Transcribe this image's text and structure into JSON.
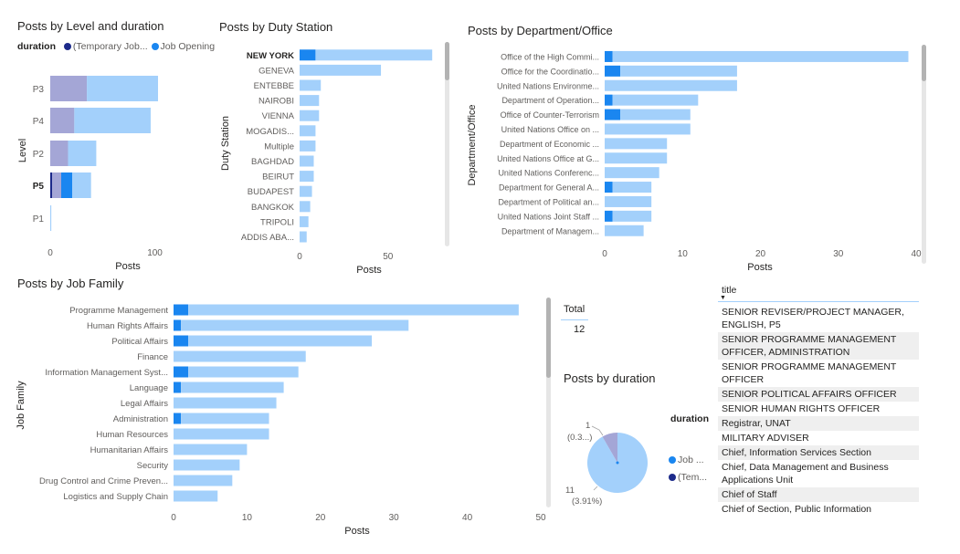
{
  "colors": {
    "light": "#a3d0fb",
    "dark": "#1a86f0",
    "purple": "#a4a6d6",
    "navy": "#1c2a8a",
    "axis": "#605e5c"
  },
  "level_chart": {
    "title": "Posts by Level and duration",
    "legend_title": "duration",
    "legend_items": [
      "(Temporary Job...",
      "Job Opening"
    ],
    "ylabel": "Level",
    "xlabel": "Posts",
    "chart_data": {
      "type": "bar",
      "orientation": "horizontal",
      "stacked": true,
      "categories": [
        "P3",
        "P4",
        "P2",
        "P5",
        "P1"
      ],
      "series": [
        {
          "name": "(Temporary Job...",
          "values": [
            35,
            23,
            17,
            11,
            0
          ]
        },
        {
          "name": "Job Opening",
          "values": [
            68,
            73,
            27,
            28,
            1
          ]
        }
      ],
      "xticks": [
        "0",
        "100"
      ],
      "xlim": [
        0,
        110
      ]
    }
  },
  "duty_chart": {
    "title": "Posts by Duty Station",
    "ylabel": "Duty Station",
    "xlabel": "Posts",
    "chart_data": {
      "type": "bar",
      "orientation": "horizontal",
      "stacked": true,
      "categories": [
        "NEW YORK",
        "GENEVA",
        "ENTEBBE",
        "NAIROBI",
        "VIENNA",
        "MOGADIS...",
        "Multiple",
        "BAGHDAD",
        "BEIRUT",
        "BUDAPEST",
        "BANGKOK",
        "TRIPOLI",
        "ADDIS ABA..."
      ],
      "series": [
        {
          "name": "dark",
          "values": [
            9,
            0,
            0,
            0,
            0,
            0,
            0,
            0,
            0,
            0,
            0,
            0,
            0
          ]
        },
        {
          "name": "light",
          "values": [
            66,
            46,
            12,
            11,
            11,
            9,
            9,
            8,
            8,
            7,
            6,
            5,
            4
          ]
        }
      ],
      "xticks": [
        "0",
        "50"
      ],
      "xlim": [
        0,
        78
      ]
    }
  },
  "dept_chart": {
    "title": "Posts by Department/Office",
    "ylabel": "Department/Office",
    "xlabel": "Posts",
    "chart_data": {
      "type": "bar",
      "orientation": "horizontal",
      "stacked": true,
      "categories": [
        "Office of the High Commi...",
        "Office for the Coordinatio...",
        "United Nations Environme...",
        "Department of Operation...",
        "Office of Counter-Terrorism",
        "United Nations Office on ...",
        "Department of Economic ...",
        "United Nations Office at G...",
        "United Nations Conferenc...",
        "Department for General A...",
        "Department of Political an...",
        "United Nations Joint Staff ...",
        "Department of Managem..."
      ],
      "series": [
        {
          "name": "dark",
          "values": [
            1,
            2,
            0,
            1,
            2,
            0,
            0,
            0,
            0,
            1,
            0,
            1,
            0
          ]
        },
        {
          "name": "light",
          "values": [
            38,
            15,
            17,
            11,
            9,
            11,
            8,
            8,
            7,
            5,
            6,
            5,
            5
          ]
        }
      ],
      "xticks": [
        "0",
        "10",
        "20",
        "30",
        "40"
      ],
      "xlim": [
        0,
        40
      ]
    }
  },
  "family_chart": {
    "title": "Posts by Job Family",
    "ylabel": "Job Family",
    "xlabel": "Posts",
    "chart_data": {
      "type": "bar",
      "orientation": "horizontal",
      "stacked": true,
      "categories": [
        "Programme Management",
        "Human Rights Affairs",
        "Political Affairs",
        "Finance",
        "Information Management Syst...",
        "Language",
        "Legal Affairs",
        "Administration",
        "Human Resources",
        "Humanitarian Affairs",
        "Security",
        "Drug Control and Crime Preven...",
        "Logistics and Supply Chain"
      ],
      "series": [
        {
          "name": "dark",
          "values": [
            2,
            1,
            2,
            0,
            2,
            1,
            0,
            1,
            0,
            0,
            0,
            0,
            0
          ]
        },
        {
          "name": "light",
          "values": [
            45,
            31,
            25,
            18,
            15,
            14,
            14,
            12,
            13,
            10,
            9,
            8,
            6
          ]
        }
      ],
      "xticks": [
        "0",
        "10",
        "20",
        "30",
        "40",
        "50"
      ],
      "xlim": [
        0,
        50
      ]
    }
  },
  "card": {
    "label": "Total",
    "value": "12"
  },
  "pie_chart": {
    "title": "Posts by duration",
    "legend_title": "duration",
    "legend_items": [
      "Job ...",
      "(Tem..."
    ],
    "label_small_top": "1",
    "label_small_bottom": "(0.3...)",
    "label_big_top": "11",
    "label_big_bottom": "(3.91%)",
    "chart_data": {
      "type": "pie",
      "slices": [
        {
          "label": "Job ...",
          "value": 11
        },
        {
          "label": "(Tem...",
          "value": 1
        }
      ]
    }
  },
  "table": {
    "header": "title",
    "rows": [
      "SENIOR REVISER/PROJECT MANAGER, ENGLISH, P5",
      "SENIOR PROGRAMME MANAGEMENT OFFICER, ADMINISTRATION",
      "SENIOR PROGRAMME MANAGEMENT OFFICER",
      "SENIOR POLITICAL AFFAIRS OFFICER",
      "SENIOR HUMAN RIGHTS OFFICER",
      "Registrar, UNAT",
      "MILITARY ADVISER",
      "Chief, Information Services Section",
      "Chief, Data Management and Business Applications Unit",
      "Chief of Staff",
      "Chief of Section, Public Information"
    ]
  }
}
